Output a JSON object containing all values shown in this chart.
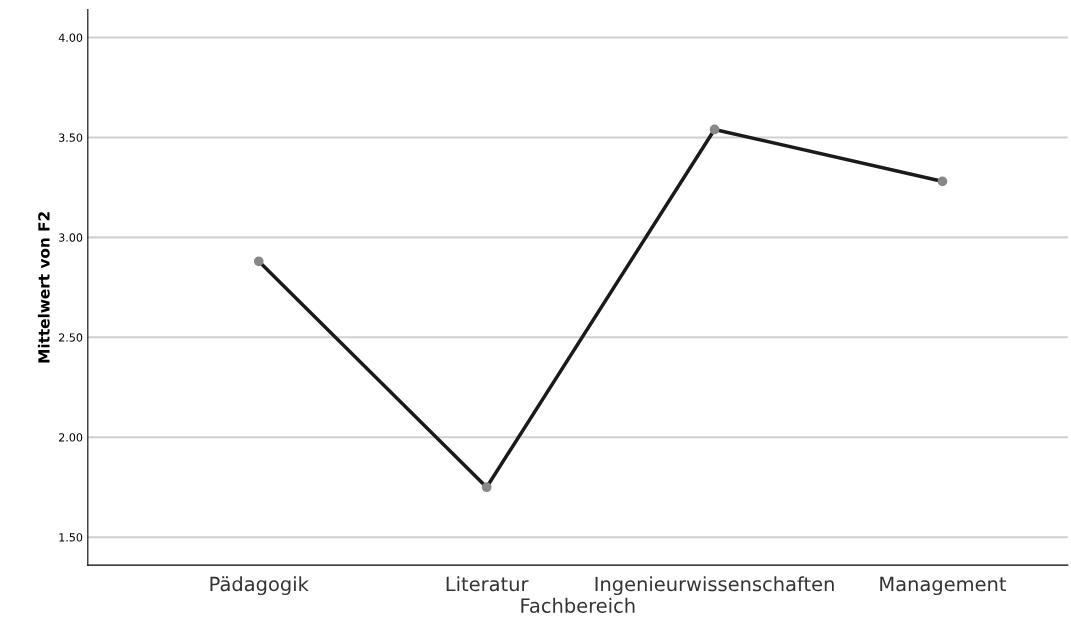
{
  "chart_data": {
    "type": "line",
    "xlabel": "Fachbereich",
    "ylabel": "Mittelwert von F2",
    "categories": [
      "Pädagogik",
      "Literatur",
      "Ingenieurwissenschaften",
      "Management"
    ],
    "series": [
      {
        "color": "#1a1a1a",
        "values": [
          2.88,
          1.75,
          3.54,
          3.28
        ]
      }
    ],
    "ylim": [
      1.36,
      4.14
    ],
    "yticks": [
      {
        "value": 1.5,
        "label": "1.50"
      },
      {
        "value": 2.0,
        "label": "2.00"
      },
      {
        "value": 2.5,
        "label": "2.50"
      },
      {
        "value": 3.0,
        "label": "3.00"
      },
      {
        "value": 3.5,
        "label": "3.50"
      },
      {
        "value": 4.0,
        "label": "4.00"
      }
    ],
    "grid": "y",
    "marker": "circle",
    "line_style": "solid",
    "legend": false
  }
}
